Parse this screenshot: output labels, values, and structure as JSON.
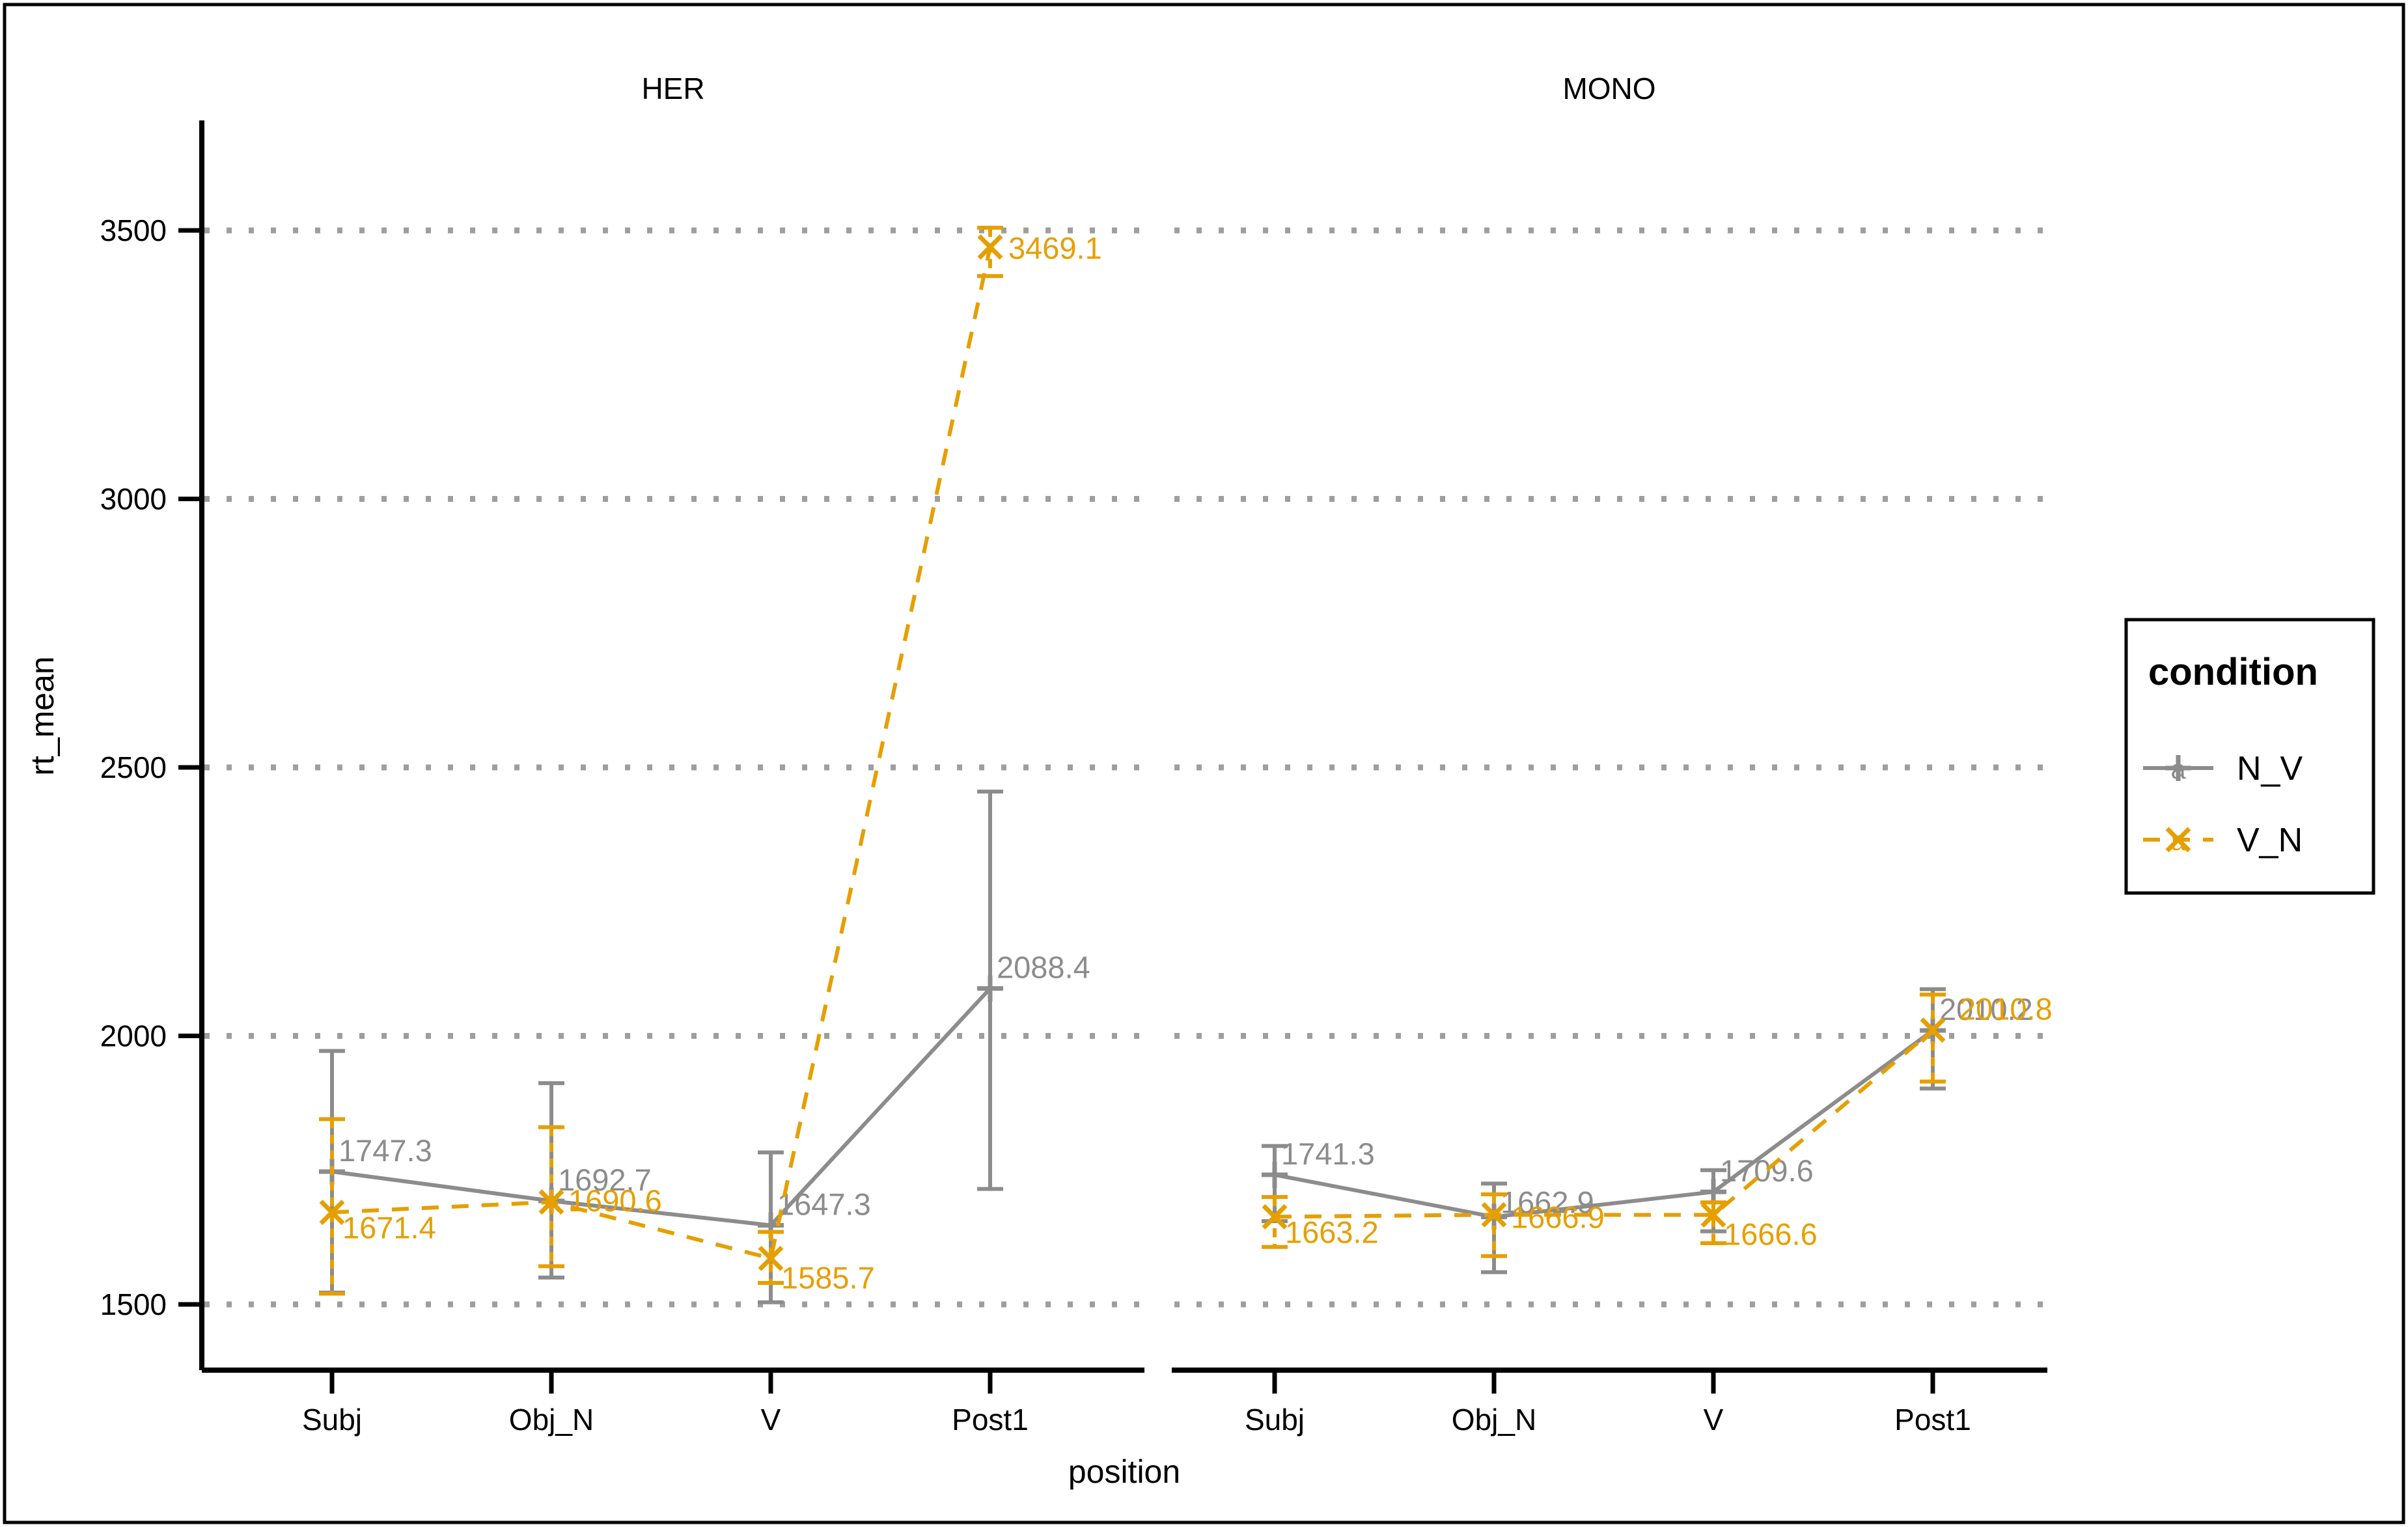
{
  "figure": {
    "facet_titles": [
      "HER",
      "MONO"
    ],
    "x_axis_title": "position",
    "y_axis_title": "rt_mean"
  },
  "legend": {
    "title": "condition",
    "items": [
      {
        "label": "N_V",
        "key_glyph": "a-plus-solid-line",
        "color": "#8C8C8C"
      },
      {
        "label": "V_N",
        "key_glyph": "a-cross-dashed-line",
        "color": "#E69F00"
      }
    ]
  },
  "palette": {
    "n_v": "#8C8C8C",
    "v_n": "#E69F00",
    "grid": "#9E9E9E",
    "axis": "#000000",
    "background": "#FFFFFF"
  },
  "chart_data": {
    "type": "line",
    "title": "",
    "xlabel": "position",
    "ylabel": "rt_mean",
    "categories": [
      "Subj",
      "Obj_N",
      "V",
      "Post1"
    ],
    "yticks": [
      1500,
      2000,
      2500,
      3000,
      3500
    ],
    "ylim": [
      1400,
      3650
    ],
    "grid": "dotted horizontal at major y ticks",
    "legend_position": "right",
    "facets": [
      {
        "name": "HER",
        "series": [
          {
            "name": "N_V",
            "color": "#8C8C8C",
            "line": "solid",
            "marker": "plus",
            "values": [
              1747.3,
              1692.7,
              1647.3,
              2088.4
            ],
            "err_low": [
              1522,
              1550,
              1504,
              1715
            ],
            "err_high": [
              1972,
              1912,
              1783,
              2455
            ],
            "labels": [
              "1747.3",
              "1692.7",
              "1647.3",
              "2088.4"
            ]
          },
          {
            "name": "V_N",
            "color": "#E69F00",
            "line": "dashed",
            "marker": "cross",
            "values": [
              1671.4,
              1690.6,
              1585.7,
              3469.1
            ],
            "err_low": [
              1520,
              1571,
              1540,
              3415
            ],
            "err_high": [
              1845,
              1830,
              1635,
              3505
            ],
            "labels": [
              "1671.4",
              "1690.6",
              "1585.7",
              "3469.1"
            ]
          }
        ]
      },
      {
        "name": "MONO",
        "series": [
          {
            "name": "N_V",
            "color": "#8C8C8C",
            "line": "solid",
            "marker": "plus",
            "values": [
              1741.3,
              1662.9,
              1709.6,
              2010.2
            ],
            "err_low": [
              1655,
              1560,
              1636,
              1902
            ],
            "err_high": [
              1795,
              1725,
              1750,
              2087
            ],
            "labels": [
              "1741.3",
              "1662.9",
              "1709.6",
              "2010.2"
            ]
          },
          {
            "name": "V_N",
            "color": "#E69F00",
            "line": "dashed",
            "marker": "cross",
            "values": [
              1663.2,
              1666.9,
              1666.6,
              2010.8
            ],
            "err_low": [
              1607,
              1590,
              1614,
              1915
            ],
            "err_high": [
              1700,
              1705,
              1690,
              2077
            ],
            "labels": [
              "1663.2",
              "1666.9",
              "1666.6",
              "2010.8"
            ]
          }
        ]
      }
    ]
  }
}
